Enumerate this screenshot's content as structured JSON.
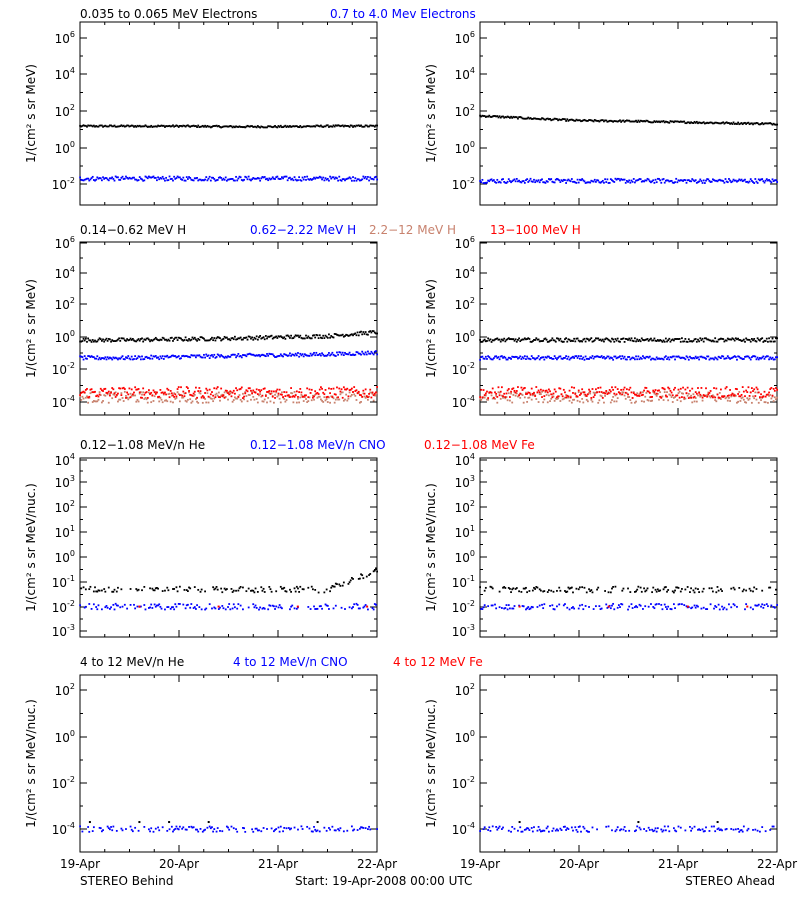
{
  "rows": [
    {
      "legend": [
        {
          "text": "0.035 to 0.065 MeV Electrons",
          "color": "#000000"
        },
        {
          "text": "0.7 to 4.0 Mev Electrons",
          "color": "#0000ff"
        }
      ],
      "ylabel": "1/(cm² s sr MeV)",
      "y_ticks": [
        {
          "base": "10",
          "exp": "6"
        },
        {
          "base": "10",
          "exp": "4"
        },
        {
          "base": "10",
          "exp": "2"
        },
        {
          "base": "10",
          "exp": "0"
        },
        {
          "base": "10",
          "exp": "-2"
        }
      ]
    },
    {
      "legend": [
        {
          "text": "0.14−0.62 MeV H",
          "color": "#000000"
        },
        {
          "text": "0.62−2.22 MeV H",
          "color": "#0000ff"
        },
        {
          "text": "2.2−12 MeV H",
          "color": "#c8826e"
        },
        {
          "text": "13−100 MeV H",
          "color": "#ff0000"
        }
      ],
      "ylabel": "1/(cm² s sr MeV)",
      "y_ticks": [
        {
          "base": "10",
          "exp": "6"
        },
        {
          "base": "10",
          "exp": "4"
        },
        {
          "base": "10",
          "exp": "2"
        },
        {
          "base": "10",
          "exp": "0"
        },
        {
          "base": "10",
          "exp": "-2"
        },
        {
          "base": "10",
          "exp": "-4"
        }
      ]
    },
    {
      "legend": [
        {
          "text": "0.12−1.08 MeV/n He",
          "color": "#000000"
        },
        {
          "text": "0.12−1.08 MeV/n CNO",
          "color": "#0000ff"
        },
        {
          "text": "0.12−1.08 MeV Fe",
          "color": "#ff0000"
        }
      ],
      "ylabel": "1/(cm² s sr MeV/nuc.)",
      "y_ticks": [
        {
          "base": "10",
          "exp": "4"
        },
        {
          "base": "10",
          "exp": "3"
        },
        {
          "base": "10",
          "exp": "2"
        },
        {
          "base": "10",
          "exp": "1"
        },
        {
          "base": "10",
          "exp": "0"
        },
        {
          "base": "10",
          "exp": "-1"
        },
        {
          "base": "10",
          "exp": "-2"
        },
        {
          "base": "10",
          "exp": "-3"
        }
      ]
    },
    {
      "legend": [
        {
          "text": "4 to 12 MeV/n He",
          "color": "#000000"
        },
        {
          "text": "4 to 12 MeV/n CNO",
          "color": "#0000ff"
        },
        {
          "text": "4 to 12 MeV Fe",
          "color": "#ff0000"
        }
      ],
      "ylabel": "1/(cm² s sr MeV/nuc.)",
      "y_ticks": [
        {
          "base": "10",
          "exp": "2"
        },
        {
          "base": "10",
          "exp": "0"
        },
        {
          "base": "10",
          "exp": "-2"
        },
        {
          "base": "10",
          "exp": "-4"
        }
      ]
    }
  ],
  "x_ticks": [
    "19-Apr",
    "20-Apr",
    "21-Apr",
    "22-Apr"
  ],
  "footer": {
    "left": "STEREO Behind",
    "center": "Start: 19-Apr-2008 00:00 UTC",
    "right": "STEREO Ahead"
  },
  "chart_data": [
    {
      "type": "scatter",
      "spacecraft": "STEREO Behind",
      "y_scale": "log",
      "ylim_exp": [
        -3,
        6.5
      ],
      "xlim_days": [
        0,
        3
      ],
      "series": [
        {
          "name": "0.035 to 0.065 MeV Electrons",
          "color": "#000000",
          "x": [
            0,
            0.5,
            1,
            1.5,
            2,
            2.5,
            3
          ],
          "y": [
            15,
            15,
            15,
            14,
            14,
            15,
            15
          ]
        },
        {
          "name": "0.7 to 4.0 Mev Electrons",
          "color": "#0000ff",
          "x": [
            0,
            0.5,
            1,
            1.5,
            2,
            2.5,
            3
          ],
          "y": [
            0.02,
            0.02,
            0.02,
            0.02,
            0.02,
            0.02,
            0.02
          ]
        }
      ]
    },
    {
      "type": "scatter",
      "spacecraft": "STEREO Ahead",
      "y_scale": "log",
      "ylim_exp": [
        -3,
        6.5
      ],
      "xlim_days": [
        0,
        3
      ],
      "series": [
        {
          "name": "0.035 to 0.065 MeV Electrons",
          "color": "#000000",
          "x": [
            0,
            0.5,
            1,
            1.5,
            2,
            2.5,
            3
          ],
          "y": [
            55,
            40,
            30,
            28,
            25,
            22,
            20
          ]
        },
        {
          "name": "0.7 to 4.0 Mev Electrons",
          "color": "#0000ff",
          "x": [
            0,
            0.5,
            1,
            1.5,
            2,
            2.5,
            3
          ],
          "y": [
            0.015,
            0.015,
            0.015,
            0.015,
            0.015,
            0.015,
            0.015
          ]
        }
      ]
    },
    {
      "type": "scatter",
      "spacecraft": "STEREO Behind",
      "y_scale": "log",
      "ylim_exp": [
        -5,
        6.5
      ],
      "xlim_days": [
        0,
        3
      ],
      "series": [
        {
          "name": "0.14−0.62 MeV H",
          "color": "#000000",
          "x": [
            0,
            0.5,
            1,
            1.5,
            2,
            2.5,
            3
          ],
          "y": [
            0.8,
            0.8,
            0.9,
            1.0,
            1.2,
            1.4,
            2.5
          ]
        },
        {
          "name": "0.62−2.22 MeV H",
          "color": "#0000ff",
          "x": [
            0,
            0.5,
            1,
            1.5,
            2,
            2.5,
            3
          ],
          "y": [
            0.06,
            0.06,
            0.07,
            0.08,
            0.09,
            0.1,
            0.13
          ]
        },
        {
          "name": "2.2−12 MeV H",
          "color": "#c8826e",
          "x": [
            0,
            0.5,
            1,
            1.5,
            2,
            2.5,
            3
          ],
          "y": [
            0.0002,
            0.0002,
            0.0002,
            0.0002,
            0.0002,
            0.0002,
            0.0002
          ]
        },
        {
          "name": "13−100 MeV H",
          "color": "#ff0000",
          "x": [
            0,
            0.5,
            1,
            1.5,
            2,
            2.5,
            3
          ],
          "y": [
            0.0004,
            0.0004,
            0.0004,
            0.0004,
            0.0004,
            0.0004,
            0.0004
          ]
        }
      ]
    },
    {
      "type": "scatter",
      "spacecraft": "STEREO Ahead",
      "y_scale": "log",
      "ylim_exp": [
        -5,
        6.5
      ],
      "xlim_days": [
        0,
        3
      ],
      "series": [
        {
          "name": "0.14−0.62 MeV H",
          "color": "#000000",
          "x": [
            0,
            0.5,
            1,
            1.5,
            2,
            2.5,
            3
          ],
          "y": [
            0.8,
            0.8,
            0.8,
            0.8,
            0.8,
            0.8,
            0.8
          ]
        },
        {
          "name": "0.62−2.22 MeV H",
          "color": "#0000ff",
          "x": [
            0,
            0.5,
            1,
            1.5,
            2,
            2.5,
            3
          ],
          "y": [
            0.06,
            0.06,
            0.06,
            0.06,
            0.06,
            0.06,
            0.06
          ]
        },
        {
          "name": "2.2−12 MeV H",
          "color": "#c8826e",
          "x": [
            0,
            0.5,
            1,
            1.5,
            2,
            2.5,
            3
          ],
          "y": [
            0.0002,
            0.0002,
            0.0002,
            0.0002,
            0.0002,
            0.0002,
            0.0002
          ]
        },
        {
          "name": "13−100 MeV H",
          "color": "#ff0000",
          "x": [
            0,
            0.5,
            1,
            1.5,
            2,
            2.5,
            3
          ],
          "y": [
            0.0004,
            0.0004,
            0.0004,
            0.0004,
            0.0004,
            0.0004,
            0.0004
          ]
        }
      ]
    },
    {
      "type": "scatter",
      "spacecraft": "STEREO Behind",
      "y_scale": "log",
      "ylim_exp": [
        -3.5,
        4
      ],
      "xlim_days": [
        0,
        3
      ],
      "series": [
        {
          "name": "0.12−1.08 MeV/n He",
          "color": "#000000",
          "x": [
            0,
            0.5,
            1,
            1.5,
            2,
            2.5,
            2.8,
            3
          ],
          "y": [
            0.05,
            0.05,
            0.05,
            0.05,
            0.05,
            0.05,
            0.15,
            0.3
          ]
        },
        {
          "name": "0.12−1.08 MeV/n CNO",
          "color": "#0000ff",
          "x": [
            0,
            0.5,
            1,
            1.5,
            2,
            2.5,
            3
          ],
          "y": [
            0.01,
            0.01,
            0.01,
            0.01,
            0.01,
            0.01,
            0.01
          ]
        },
        {
          "name": "0.12−1.08 MeV Fe",
          "color": "#ff0000",
          "x": [
            0.6,
            1.4,
            2.2,
            2.9
          ],
          "y": [
            0.01,
            0.01,
            0.01,
            0.01
          ]
        }
      ]
    },
    {
      "type": "scatter",
      "spacecraft": "STEREO Ahead",
      "y_scale": "log",
      "ylim_exp": [
        -3.5,
        4
      ],
      "xlim_days": [
        0,
        3
      ],
      "series": [
        {
          "name": "0.12−1.08 MeV/n He",
          "color": "#000000",
          "x": [
            0,
            0.5,
            1,
            1.5,
            2,
            2.5,
            3
          ],
          "y": [
            0.05,
            0.05,
            0.05,
            0.05,
            0.05,
            0.05,
            0.05
          ]
        },
        {
          "name": "0.12−1.08 MeV/n CNO",
          "color": "#0000ff",
          "x": [
            0,
            0.5,
            1,
            1.5,
            2,
            2.5,
            3
          ],
          "y": [
            0.01,
            0.01,
            0.01,
            0.01,
            0.01,
            0.01,
            0.01
          ]
        },
        {
          "name": "0.12−1.08 MeV Fe",
          "color": "#ff0000",
          "x": [
            0.4,
            1.3,
            2.1,
            2.7
          ],
          "y": [
            0.01,
            0.01,
            0.01,
            0.01
          ]
        }
      ]
    },
    {
      "type": "scatter",
      "spacecraft": "STEREO Behind",
      "y_scale": "log",
      "ylim_exp": [
        -5,
        3.5
      ],
      "xlim_days": [
        0,
        3
      ],
      "series": [
        {
          "name": "4 to 12 MeV/n He",
          "color": "#000000",
          "x": [
            0.1,
            0.6,
            0.9,
            1.3,
            2.4
          ],
          "y": [
            0.0002,
            0.0002,
            0.0002,
            0.0002,
            0.0002
          ]
        },
        {
          "name": "4 to 12 MeV/n CNO",
          "color": "#0000ff",
          "x": [
            0,
            0.5,
            1,
            1.5,
            2,
            2.5,
            3
          ],
          "y": [
            0.0001,
            0.0001,
            0.0001,
            0.0001,
            0.0001,
            0.0001,
            0.0001
          ]
        }
      ]
    },
    {
      "type": "scatter",
      "spacecraft": "STEREO Ahead",
      "y_scale": "log",
      "ylim_exp": [
        -5,
        3.5
      ],
      "xlim_days": [
        0,
        3
      ],
      "series": [
        {
          "name": "4 to 12 MeV/n He",
          "color": "#000000",
          "x": [
            0.4,
            1.6,
            2.4
          ],
          "y": [
            0.0002,
            0.0002,
            0.0002
          ]
        },
        {
          "name": "4 to 12 MeV/n CNO",
          "color": "#0000ff",
          "x": [
            0,
            0.5,
            1,
            1.5,
            2,
            2.5,
            3
          ],
          "y": [
            0.0001,
            0.0001,
            0.0001,
            0.0001,
            0.0001,
            0.0001,
            0.0001
          ]
        }
      ]
    }
  ]
}
